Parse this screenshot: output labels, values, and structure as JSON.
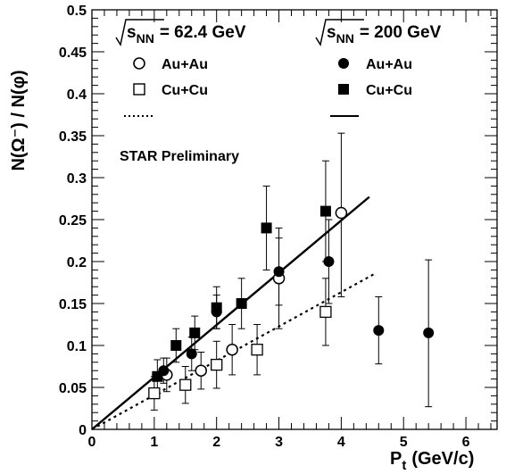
{
  "chart_data": {
    "type": "scatter",
    "xlabel": "P",
    "xlabel_sub": "t",
    "xlabel_unit": "(GeV/c)",
    "ylabel": "N(Ω⁻) / N(φ)",
    "xlim": [
      0,
      6.5
    ],
    "ylim": [
      0,
      0.5
    ],
    "x_ticks": [
      "0",
      "1",
      "2",
      "3",
      "4",
      "5",
      "6"
    ],
    "y_ticks": [
      "0",
      "0.05",
      "0.1",
      "0.15",
      "0.2",
      "0.25",
      "0.3",
      "0.35",
      "0.4",
      "0.45",
      "0.5"
    ],
    "annotation": "STAR Preliminary",
    "legend": {
      "energy_low": "= 62.4 GeV",
      "energy_high": "= 200 GeV",
      "sqrt_label": "s",
      "sqrt_sub": "NN",
      "auau": "Au+Au",
      "cucu": "Cu+Cu"
    },
    "series": [
      {
        "name": "Au+Au",
        "group": "= 62.4 GeV",
        "marker": "open-circle",
        "points": [
          {
            "x": 1.2,
            "y": 0.065,
            "err_lo": 0.02,
            "err_hi": 0.02
          },
          {
            "x": 1.75,
            "y": 0.07,
            "err_lo": 0.022,
            "err_hi": 0.022
          },
          {
            "x": 2.25,
            "y": 0.095,
            "err_lo": 0.03,
            "err_hi": 0.03
          },
          {
            "x": 3.0,
            "y": 0.18,
            "err_lo": 0.06,
            "err_hi": 0.06
          },
          {
            "x": 4.0,
            "y": 0.258,
            "err_lo": 0.1,
            "err_hi": 0.095
          }
        ]
      },
      {
        "name": "Cu+Cu",
        "group": "= 62.4 GeV",
        "marker": "open-square",
        "points": [
          {
            "x": 1.0,
            "y": 0.043,
            "err_lo": 0.02,
            "err_hi": 0.02
          },
          {
            "x": 1.5,
            "y": 0.053,
            "err_lo": 0.022,
            "err_hi": 0.022
          },
          {
            "x": 2.0,
            "y": 0.077,
            "err_lo": 0.028,
            "err_hi": 0.028
          },
          {
            "x": 2.65,
            "y": 0.095,
            "err_lo": 0.03,
            "err_hi": 0.03
          },
          {
            "x": 3.75,
            "y": 0.14,
            "err_lo": 0.04,
            "err_hi": 0.04
          }
        ]
      },
      {
        "name": "Au+Au",
        "group": "= 200 GeV",
        "marker": "filled-circle",
        "points": [
          {
            "x": 1.15,
            "y": 0.07,
            "err_lo": 0.015,
            "err_hi": 0.015
          },
          {
            "x": 1.6,
            "y": 0.09,
            "err_lo": 0.02,
            "err_hi": 0.02
          },
          {
            "x": 2.0,
            "y": 0.14,
            "err_lo": 0.02,
            "err_hi": 0.02
          },
          {
            "x": 3.0,
            "y": 0.188,
            "err_lo": 0.04,
            "err_hi": 0.04
          },
          {
            "x": 3.8,
            "y": 0.2,
            "err_lo": 0.05,
            "err_hi": 0.05
          },
          {
            "x": 4.6,
            "y": 0.118,
            "err_lo": 0.04,
            "err_hi": 0.04
          },
          {
            "x": 5.4,
            "y": 0.115,
            "err_lo": 0.088,
            "err_hi": 0.087
          }
        ]
      },
      {
        "name": "Cu+Cu",
        "group": "= 200 GeV",
        "marker": "filled-square",
        "points": [
          {
            "x": 1.05,
            "y": 0.063,
            "err_lo": 0.02,
            "err_hi": 0.02
          },
          {
            "x": 1.35,
            "y": 0.1,
            "err_lo": 0.02,
            "err_hi": 0.02
          },
          {
            "x": 1.65,
            "y": 0.115,
            "err_lo": 0.02,
            "err_hi": 0.02
          },
          {
            "x": 2.0,
            "y": 0.145,
            "err_lo": 0.025,
            "err_hi": 0.025
          },
          {
            "x": 2.4,
            "y": 0.15,
            "err_lo": 0.03,
            "err_hi": 0.03
          },
          {
            "x": 2.8,
            "y": 0.24,
            "err_lo": 0.05,
            "err_hi": 0.05
          },
          {
            "x": 3.75,
            "y": 0.26,
            "err_lo": 0.06,
            "err_hi": 0.06
          }
        ]
      }
    ],
    "fits": [
      {
        "group": "= 200 GeV",
        "style": "solid",
        "x": [
          0,
          4.45
        ],
        "y": [
          0,
          0.277
        ]
      },
      {
        "group": "= 62.4 GeV",
        "style": "dotted",
        "x": [
          0,
          4.55
        ],
        "y": [
          0,
          0.186
        ]
      }
    ]
  }
}
